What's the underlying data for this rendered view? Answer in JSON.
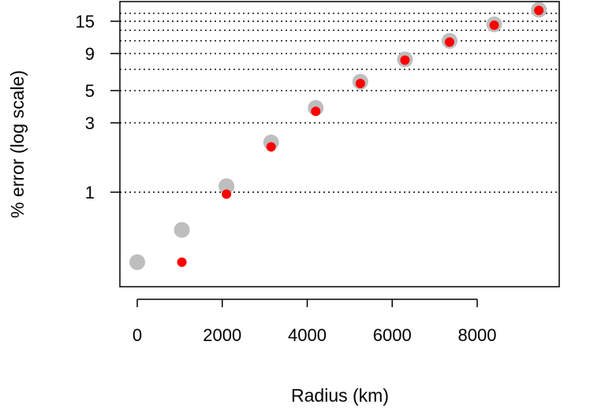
{
  "chart_data": {
    "type": "scatter",
    "title": "",
    "xlabel": "Radius (km)",
    "ylabel": "% error (log scale)",
    "y_scale": "log",
    "xlim": [
      -200,
      9750
    ],
    "ylim": [
      0.3,
      20
    ],
    "x_ticks": [
      0,
      2000,
      4000,
      6000,
      8000
    ],
    "x_tick_labels": [
      "0",
      "2000",
      "4000",
      "6000",
      "8000"
    ],
    "y_ticks": [
      1,
      3,
      5,
      9,
      15
    ],
    "y_tick_labels": [
      "1",
      "3",
      "5",
      "9",
      "15"
    ],
    "y_gridlines": [
      1,
      3,
      5,
      7,
      9,
      11,
      13,
      15,
      17
    ],
    "grid": "horizontal dotted",
    "series": [
      {
        "color": "#bebebe",
        "x": [
          0,
          1050,
          2100,
          3150,
          4200,
          5250,
          6300,
          7350,
          8400,
          9450
        ],
        "y": [
          0.33,
          0.55,
          1.1,
          2.2,
          3.8,
          5.75,
          8.2,
          11.0,
          14.3,
          18.0
        ]
      },
      {
        "color": "#ff0000",
        "x": [
          1050,
          2100,
          3150,
          4200,
          5250,
          6300,
          7350,
          8400,
          9450
        ],
        "y": [
          0.33,
          0.97,
          2.05,
          3.6,
          5.6,
          8.1,
          10.8,
          14.1,
          17.8
        ]
      }
    ]
  }
}
